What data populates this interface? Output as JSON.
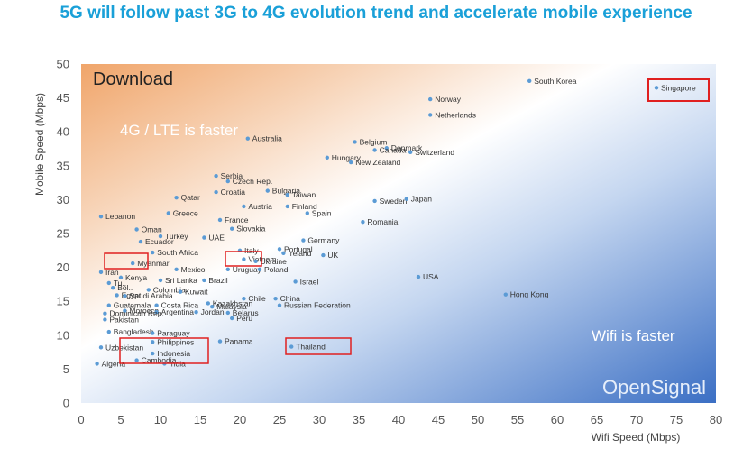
{
  "title": "5G will follow past 3G to 4G evolution trend and accelerate mobile experience",
  "chart_data": {
    "type": "scatter",
    "xlabel": "Wifi Speed (Mbps)",
    "ylabel": "Mobile Speed (Mbps)",
    "xlim": [
      0,
      80
    ],
    "ylim": [
      0,
      50
    ],
    "xticks": [
      0,
      5,
      10,
      15,
      20,
      25,
      30,
      35,
      40,
      45,
      50,
      55,
      60,
      65,
      70,
      75,
      80
    ],
    "yticks": [
      0,
      5,
      10,
      15,
      20,
      25,
      30,
      35,
      40,
      45,
      50
    ],
    "annotations": {
      "download": "Download",
      "lte_faster": "4G / LTE is faster",
      "wifi_faster": "Wifi is faster",
      "brand": "OpenSignal"
    },
    "colors": {
      "point": "#5b9bd5",
      "highlight": "#e02020",
      "title": "#1aa0d8"
    },
    "highlighted": [
      "Singapore",
      "Myanmar",
      "Vietnam",
      "Thailand",
      "Cambodia",
      "Indonesia",
      "India"
    ],
    "points": [
      {
        "name": "South Korea",
        "x": 56.5,
        "y": 47.5
      },
      {
        "name": "Singapore",
        "x": 72.5,
        "y": 46.5
      },
      {
        "name": "Norway",
        "x": 44,
        "y": 44.8
      },
      {
        "name": "Netherlands",
        "x": 44,
        "y": 42.5
      },
      {
        "name": "Australia",
        "x": 21,
        "y": 39
      },
      {
        "name": "Belgium",
        "x": 34.5,
        "y": 38.5
      },
      {
        "name": "Denmark",
        "x": 38.5,
        "y": 37.6
      },
      {
        "name": "Canada",
        "x": 37,
        "y": 37.3
      },
      {
        "name": "Switzerland",
        "x": 41.5,
        "y": 37
      },
      {
        "name": "Hungary",
        "x": 31,
        "y": 36.2
      },
      {
        "name": "New Zealand",
        "x": 34,
        "y": 35.5
      },
      {
        "name": "Serbia",
        "x": 17,
        "y": 33.5
      },
      {
        "name": "Czech Rep.",
        "x": 18.5,
        "y": 32.7
      },
      {
        "name": "Bulgaria",
        "x": 23.5,
        "y": 31.3
      },
      {
        "name": "Croatia",
        "x": 17,
        "y": 31.1
      },
      {
        "name": "Qatar",
        "x": 12,
        "y": 30.3
      },
      {
        "name": "Taiwan",
        "x": 26,
        "y": 30.7
      },
      {
        "name": "Sweden",
        "x": 37,
        "y": 29.8
      },
      {
        "name": "Japan",
        "x": 41,
        "y": 30.1
      },
      {
        "name": "Austria",
        "x": 20.5,
        "y": 29
      },
      {
        "name": "Finland",
        "x": 26,
        "y": 29
      },
      {
        "name": "Spain",
        "x": 28.5,
        "y": 28
      },
      {
        "name": "Lebanon",
        "x": 2.5,
        "y": 27.5
      },
      {
        "name": "Greece",
        "x": 11,
        "y": 28
      },
      {
        "name": "France",
        "x": 17.5,
        "y": 27
      },
      {
        "name": "Romania",
        "x": 35.5,
        "y": 26.7
      },
      {
        "name": "Slovakia",
        "x": 19,
        "y": 25.7
      },
      {
        "name": "Oman",
        "x": 7,
        "y": 25.6
      },
      {
        "name": "Turkey",
        "x": 10,
        "y": 24.6
      },
      {
        "name": "UAE",
        "x": 15.5,
        "y": 24.4
      },
      {
        "name": "Ecuador",
        "x": 7.5,
        "y": 23.8
      },
      {
        "name": "Germany",
        "x": 28,
        "y": 24
      },
      {
        "name": "Italy",
        "x": 20,
        "y": 22.5
      },
      {
        "name": "Portugal",
        "x": 25,
        "y": 22.7
      },
      {
        "name": "Ireland",
        "x": 25.5,
        "y": 22.1
      },
      {
        "name": "South Africa",
        "x": 9,
        "y": 22.2
      },
      {
        "name": "UK",
        "x": 30.5,
        "y": 21.8
      },
      {
        "name": "Vietnam",
        "x": 20.5,
        "y": 21.2
      },
      {
        "name": "Ukraine",
        "x": 22,
        "y": 20.9
      },
      {
        "name": "Myanmar",
        "x": 6.5,
        "y": 20.6
      },
      {
        "name": "Mexico",
        "x": 12,
        "y": 19.7
      },
      {
        "name": "Uruguay",
        "x": 18.5,
        "y": 19.7
      },
      {
        "name": "Poland",
        "x": 22.5,
        "y": 19.7
      },
      {
        "name": "Iran",
        "x": 2.5,
        "y": 19.3
      },
      {
        "name": "Kenya",
        "x": 5,
        "y": 18.5
      },
      {
        "name": "Sri Lanka",
        "x": 10,
        "y": 18.1
      },
      {
        "name": "Brazil",
        "x": 15.5,
        "y": 18.1
      },
      {
        "name": "Israel",
        "x": 27,
        "y": 17.9
      },
      {
        "name": "Tu..",
        "x": 3.5,
        "y": 17.7
      },
      {
        "name": "Bol..",
        "x": 4,
        "y": 17
      },
      {
        "name": "Colombia",
        "x": 8.5,
        "y": 16.7
      },
      {
        "name": "Kuwait",
        "x": 12.5,
        "y": 16.4
      },
      {
        "name": "Egypt",
        "x": 4.5,
        "y": 15.9
      },
      {
        "name": "Saudi Arabia",
        "x": 5.5,
        "y": 15.8
      },
      {
        "name": "Chile",
        "x": 20.5,
        "y": 15.4
      },
      {
        "name": "China",
        "x": 24.5,
        "y": 15.4
      },
      {
        "name": "Kazakhstan",
        "x": 16,
        "y": 14.7
      },
      {
        "name": "Costa Rica",
        "x": 9.5,
        "y": 14.4
      },
      {
        "name": "Guatemala",
        "x": 3.5,
        "y": 14.4
      },
      {
        "name": "Malaysia",
        "x": 16.5,
        "y": 14.2
      },
      {
        "name": "Russian Federation",
        "x": 25,
        "y": 14.4
      },
      {
        "name": "Morocco",
        "x": 5.5,
        "y": 13.6
      },
      {
        "name": "Argentina",
        "x": 9.5,
        "y": 13.4
      },
      {
        "name": "Jordan",
        "x": 14.5,
        "y": 13.4
      },
      {
        "name": "Belarus",
        "x": 18.5,
        "y": 13.3
      },
      {
        "name": "Dominican Rep.",
        "x": 3,
        "y": 13.2
      },
      {
        "name": "Peru",
        "x": 19,
        "y": 12.5
      },
      {
        "name": "Pakistan",
        "x": 3,
        "y": 12.3
      },
      {
        "name": "Bangladesh",
        "x": 3.5,
        "y": 10.5
      },
      {
        "name": "Paraguay",
        "x": 9,
        "y": 10.3
      },
      {
        "name": "Philippines",
        "x": 9,
        "y": 9
      },
      {
        "name": "Panama",
        "x": 17.5,
        "y": 9.1
      },
      {
        "name": "Thailand",
        "x": 26.5,
        "y": 8.3
      },
      {
        "name": "Uzbekistan",
        "x": 2.5,
        "y": 8.2
      },
      {
        "name": "Indonesia",
        "x": 9,
        "y": 7.3
      },
      {
        "name": "Cambodia",
        "x": 7,
        "y": 6.3
      },
      {
        "name": "India",
        "x": 10.5,
        "y": 5.8
      },
      {
        "name": "Algeria",
        "x": 2,
        "y": 5.8
      },
      {
        "name": "USA",
        "x": 42.5,
        "y": 18.6
      },
      {
        "name": "Hong Kong",
        "x": 53.5,
        "y": 16
      }
    ]
  }
}
